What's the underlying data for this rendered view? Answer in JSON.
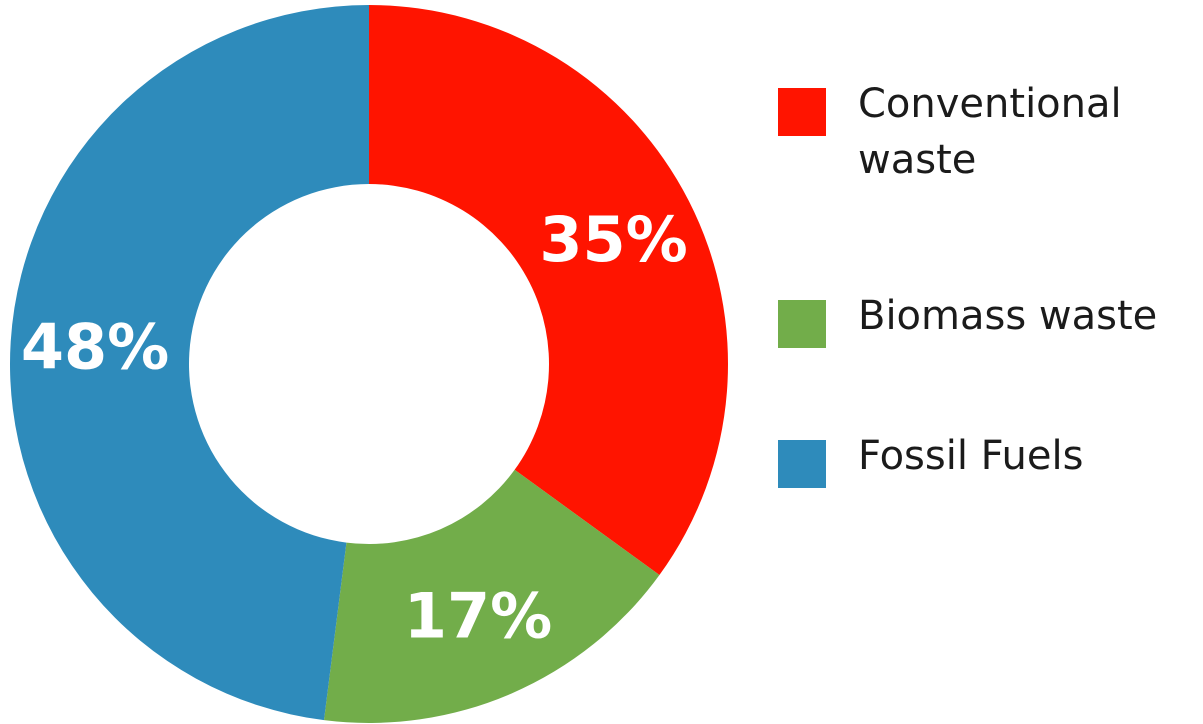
{
  "chart_data": {
    "type": "pie",
    "donut": true,
    "title": "",
    "slices": [
      {
        "label": "Conventional waste",
        "display_label": "Conventional\nwaste",
        "value": 35,
        "value_label": "35%",
        "color": "#ff1400"
      },
      {
        "label": "Biomass waste",
        "display_label": "Biomass waste",
        "value": 17,
        "value_label": "17%",
        "color": "#72ad4a"
      },
      {
        "label": "Fossil Fuels",
        "display_label": "Fossil Fuels",
        "value": 48,
        "value_label": "48%",
        "color": "#2e8bbb"
      }
    ],
    "legend": {
      "position": "right"
    }
  }
}
